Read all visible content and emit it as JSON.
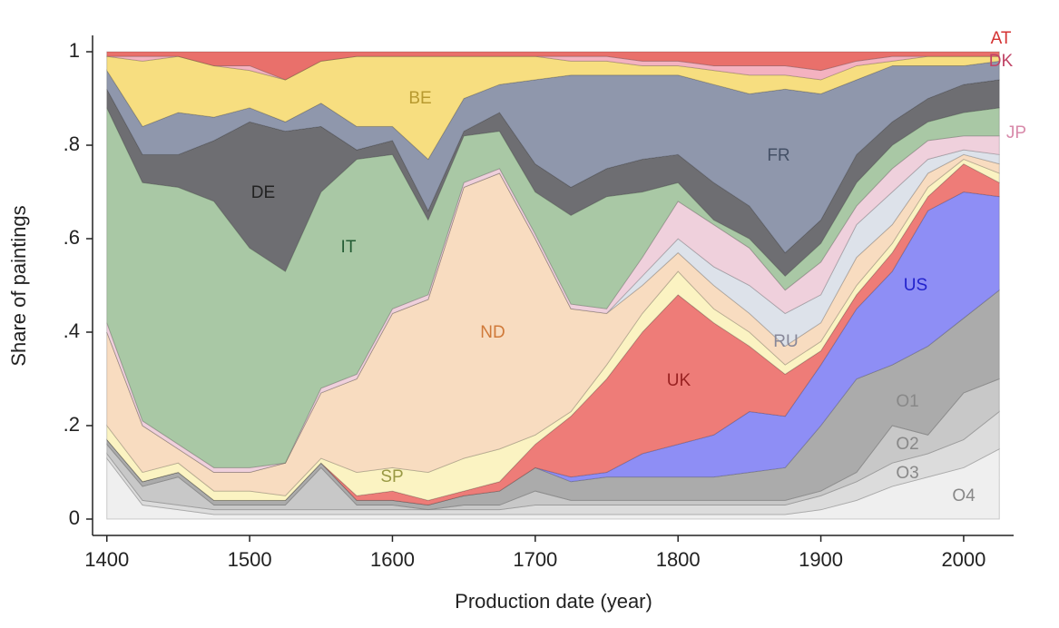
{
  "chart_data": {
    "type": "stacked_area",
    "xlabel": "Production date (year)",
    "ylabel": "Share of paintings",
    "x": [
      1400,
      1425,
      1450,
      1475,
      1500,
      1525,
      1550,
      1575,
      1600,
      1625,
      1650,
      1675,
      1700,
      1725,
      1750,
      1775,
      1800,
      1825,
      1850,
      1875,
      1900,
      1925,
      1950,
      1975,
      2000,
      2025
    ],
    "series": [
      {
        "name": "O4",
        "color": "#efefef",
        "values": [
          0.13,
          0.03,
          0.02,
          0.01,
          0.01,
          0.01,
          0.01,
          0.01,
          0.01,
          0.01,
          0.01,
          0.01,
          0.01,
          0.01,
          0.01,
          0.01,
          0.01,
          0.01,
          0.01,
          0.01,
          0.02,
          0.04,
          0.07,
          0.09,
          0.11,
          0.15
        ]
      },
      {
        "name": "O3",
        "color": "#dcdcdc",
        "values": [
          0.01,
          0.01,
          0.01,
          0.01,
          0.01,
          0.01,
          0.01,
          0.01,
          0.01,
          0.01,
          0.01,
          0.01,
          0.02,
          0.02,
          0.02,
          0.02,
          0.02,
          0.02,
          0.02,
          0.02,
          0.03,
          0.04,
          0.05,
          0.05,
          0.06,
          0.08
        ]
      },
      {
        "name": "O2",
        "color": "#c8c8c8",
        "values": [
          0.02,
          0.03,
          0.06,
          0.01,
          0.01,
          0.01,
          0.09,
          0.01,
          0.01,
          0,
          0.01,
          0.01,
          0.03,
          0.01,
          0.01,
          0.01,
          0.01,
          0.01,
          0.01,
          0.01,
          0.01,
          0.02,
          0.08,
          0.04,
          0.1,
          0.07
        ]
      },
      {
        "name": "O1",
        "color": "#ababab",
        "values": [
          0.01,
          0.01,
          0.01,
          0.01,
          0.01,
          0.01,
          0.01,
          0.01,
          0.01,
          0.01,
          0.02,
          0.03,
          0.05,
          0.04,
          0.05,
          0.05,
          0.05,
          0.05,
          0.06,
          0.07,
          0.14,
          0.2,
          0.13,
          0.19,
          0.16,
          0.19
        ]
      },
      {
        "name": "US",
        "color": "#8e8ef5",
        "values": [
          0,
          0,
          0,
          0,
          0,
          0,
          0,
          0,
          0,
          0,
          0,
          0,
          0,
          0.01,
          0.01,
          0.05,
          0.07,
          0.09,
          0.13,
          0.11,
          0.13,
          0.15,
          0.2,
          0.29,
          0.27,
          0.2
        ]
      },
      {
        "name": "UK",
        "color": "#ee7c78",
        "values": [
          0,
          0,
          0,
          0,
          0,
          0,
          0,
          0.01,
          0.02,
          0.01,
          0.01,
          0.02,
          0.05,
          0.13,
          0.2,
          0.26,
          0.32,
          0.24,
          0.14,
          0.09,
          0.03,
          0.03,
          0.04,
          0.03,
          0.06,
          0.03
        ]
      },
      {
        "name": "SP",
        "color": "#fbf3c2",
        "values": [
          0.03,
          0.02,
          0.02,
          0.02,
          0.02,
          0.01,
          0.01,
          0.05,
          0.05,
          0.06,
          0.07,
          0.07,
          0.02,
          0.01,
          0.03,
          0.04,
          0.05,
          0.03,
          0.03,
          0.02,
          0.02,
          0.02,
          0.02,
          0.02,
          0.01,
          0.02
        ]
      },
      {
        "name": "ND",
        "color": "#f8dcc0",
        "values": [
          0.2,
          0.1,
          0.03,
          0.04,
          0.04,
          0.07,
          0.14,
          0.2,
          0.33,
          0.37,
          0.58,
          0.59,
          0.42,
          0.22,
          0.11,
          0.06,
          0.04,
          0.05,
          0.04,
          0.04,
          0.04,
          0.06,
          0.04,
          0.03,
          0.01,
          0.02
        ]
      },
      {
        "name": "RU",
        "color": "#dde2ea",
        "values": [
          0,
          0,
          0,
          0,
          0,
          0,
          0,
          0,
          0,
          0,
          0,
          0,
          0,
          0,
          0,
          0.02,
          0.03,
          0.04,
          0.06,
          0.07,
          0.06,
          0.07,
          0.07,
          0.03,
          0.01,
          0.02
        ]
      },
      {
        "name": "JP",
        "color": "#efd0dc",
        "values": [
          0.02,
          0.01,
          0.01,
          0.01,
          0.01,
          0,
          0.01,
          0.01,
          0.01,
          0.01,
          0.01,
          0.01,
          0.01,
          0.01,
          0.01,
          0.04,
          0.08,
          0.09,
          0.08,
          0.05,
          0.07,
          0.04,
          0.05,
          0.04,
          0.03,
          0.04
        ]
      },
      {
        "name": "IT",
        "color": "#a9c8a5",
        "values": [
          0.46,
          0.51,
          0.55,
          0.57,
          0.47,
          0.41,
          0.42,
          0.46,
          0.33,
          0.16,
          0.1,
          0.08,
          0.09,
          0.19,
          0.24,
          0.14,
          0.04,
          0.01,
          0.02,
          0.03,
          0.04,
          0.05,
          0.05,
          0.04,
          0.05,
          0.06
        ]
      },
      {
        "name": "DE",
        "color": "#6e6e72",
        "values": [
          0.04,
          0.06,
          0.07,
          0.13,
          0.27,
          0.3,
          0.14,
          0.02,
          0.03,
          0.02,
          0.01,
          0.04,
          0.06,
          0.06,
          0.06,
          0.07,
          0.06,
          0.08,
          0.07,
          0.05,
          0.05,
          0.06,
          0.05,
          0.05,
          0.06,
          0.06
        ]
      },
      {
        "name": "FR",
        "color": "#8f97ac",
        "values": [
          0.04,
          0.06,
          0.09,
          0.05,
          0.03,
          0.02,
          0.05,
          0.05,
          0.03,
          0.11,
          0.07,
          0.06,
          0.18,
          0.24,
          0.2,
          0.18,
          0.17,
          0.21,
          0.24,
          0.35,
          0.27,
          0.16,
          0.12,
          0.07,
          0.04,
          0.04
        ]
      },
      {
        "name": "BE",
        "color": "#f7de80",
        "values": [
          0.03,
          0.14,
          0.12,
          0.11,
          0.08,
          0.09,
          0.09,
          0.15,
          0.15,
          0.22,
          0.09,
          0.06,
          0.05,
          0.03,
          0.03,
          0.02,
          0.02,
          0.03,
          0.04,
          0.03,
          0.03,
          0.03,
          0.01,
          0.02,
          0.02,
          0.01
        ]
      },
      {
        "name": "DK",
        "color": "#f4b2c0",
        "values": [
          0,
          0.01,
          0,
          0,
          0.01,
          0,
          0,
          0,
          0,
          0,
          0,
          0,
          0,
          0.01,
          0.01,
          0.01,
          0.01,
          0.01,
          0.02,
          0.02,
          0.02,
          0.01,
          0.01,
          0,
          0,
          0
        ]
      },
      {
        "name": "AT",
        "color": "#e9706b",
        "values": [
          0.01,
          0.01,
          0.01,
          0.03,
          0.03,
          0.06,
          0.02,
          0.01,
          0.01,
          0.01,
          0.01,
          0.01,
          0.01,
          0.01,
          0.01,
          0.02,
          0.02,
          0.03,
          0.03,
          0.03,
          0.04,
          0.02,
          0.01,
          0.01,
          0.01,
          0.01
        ]
      }
    ],
    "xlim": [
      1390,
      2035
    ],
    "xticks": [
      1400,
      1500,
      1600,
      1700,
      1800,
      1900,
      2000
    ],
    "ylim": [
      -0.035,
      1.035
    ],
    "yticks": [
      0,
      {
        "value": 0.2,
        "label": ".2"
      },
      {
        "value": 0.4,
        "label": ".4"
      },
      {
        "value": 0.6,
        "label": ".6"
      },
      {
        "value": 0.8,
        "label": ".8"
      },
      1
    ],
    "grid": false
  }
}
